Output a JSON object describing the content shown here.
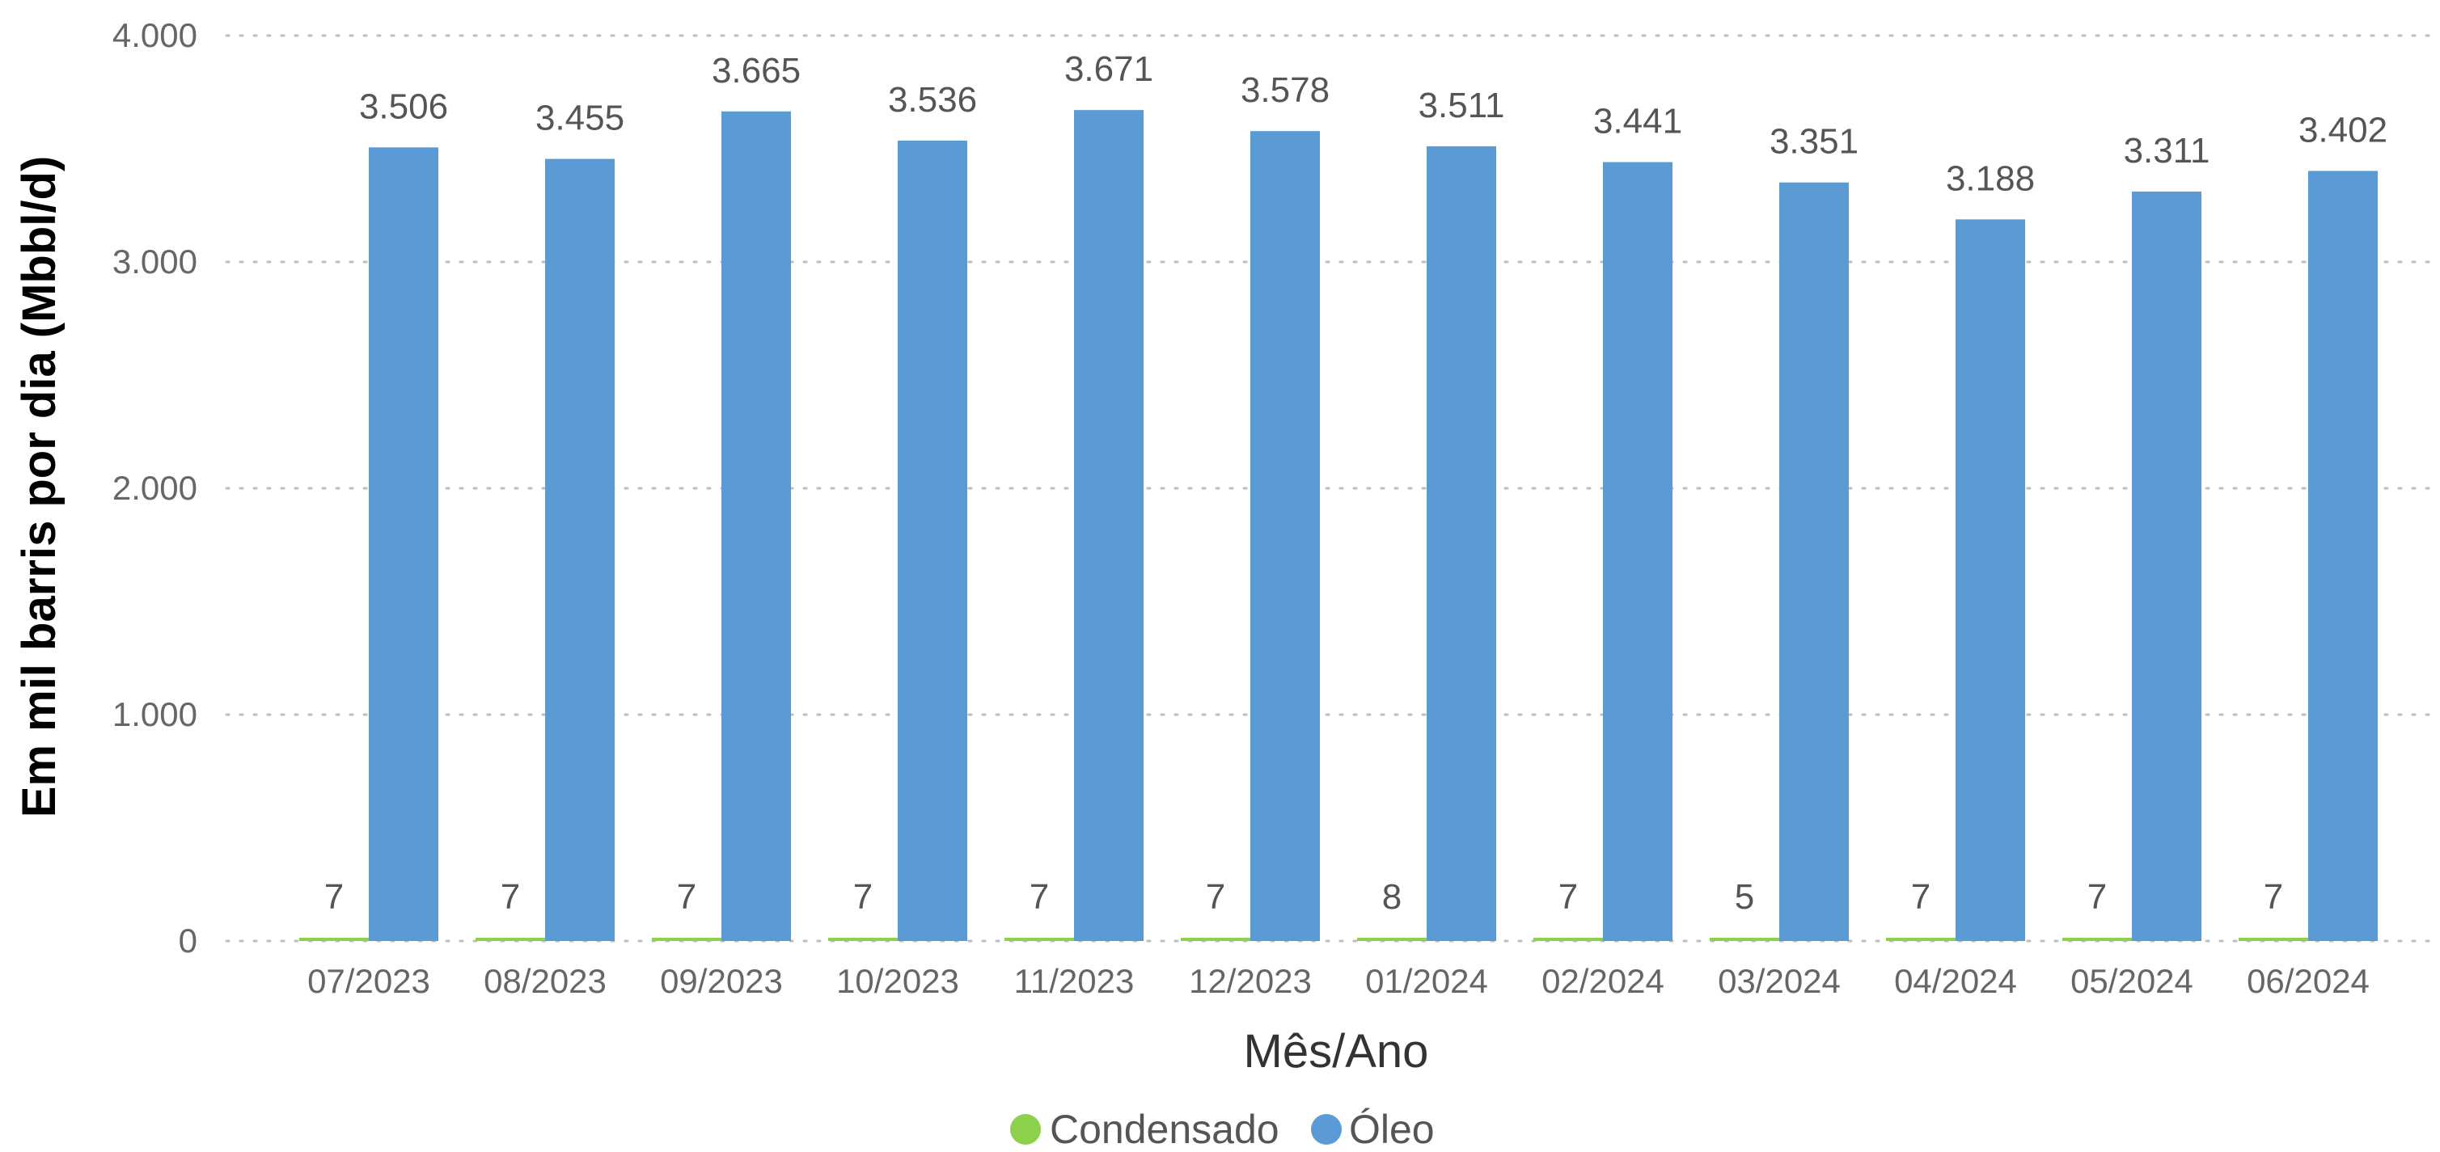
{
  "chart_data": {
    "type": "bar",
    "categories": [
      "07/2023",
      "08/2023",
      "09/2023",
      "10/2023",
      "11/2023",
      "12/2023",
      "01/2024",
      "02/2024",
      "03/2024",
      "04/2024",
      "05/2024",
      "06/2024"
    ],
    "series": [
      {
        "name": "Condensado",
        "color": "#8CD04B",
        "values": [
          7,
          7,
          7,
          7,
          7,
          7,
          8,
          7,
          5,
          7,
          7,
          7
        ],
        "labels": [
          "7",
          "7",
          "7",
          "7",
          "7",
          "7",
          "8",
          "7",
          "5",
          "7",
          "7",
          "7"
        ]
      },
      {
        "name": "Óleo",
        "color": "#5B9BD5",
        "values": [
          3506,
          3455,
          3665,
          3536,
          3671,
          3578,
          3511,
          3441,
          3351,
          3188,
          3311,
          3402
        ],
        "labels": [
          "3.506",
          "3.455",
          "3.665",
          "3.536",
          "3.671",
          "3.578",
          "3.511",
          "3.441",
          "3.351",
          "3.188",
          "3.311",
          "3.402"
        ]
      }
    ],
    "xlabel": "Mês/Ano",
    "ylabel": "Em mil barris por dia (Mbbl/d)",
    "ylim": [
      0,
      4000
    ],
    "yticks": [
      0,
      1000,
      2000,
      3000,
      4000
    ],
    "ytick_labels": [
      "0",
      "1.000",
      "2.000",
      "3.000",
      "4.000"
    ],
    "grid": true,
    "legend_position": "bottom-center"
  }
}
